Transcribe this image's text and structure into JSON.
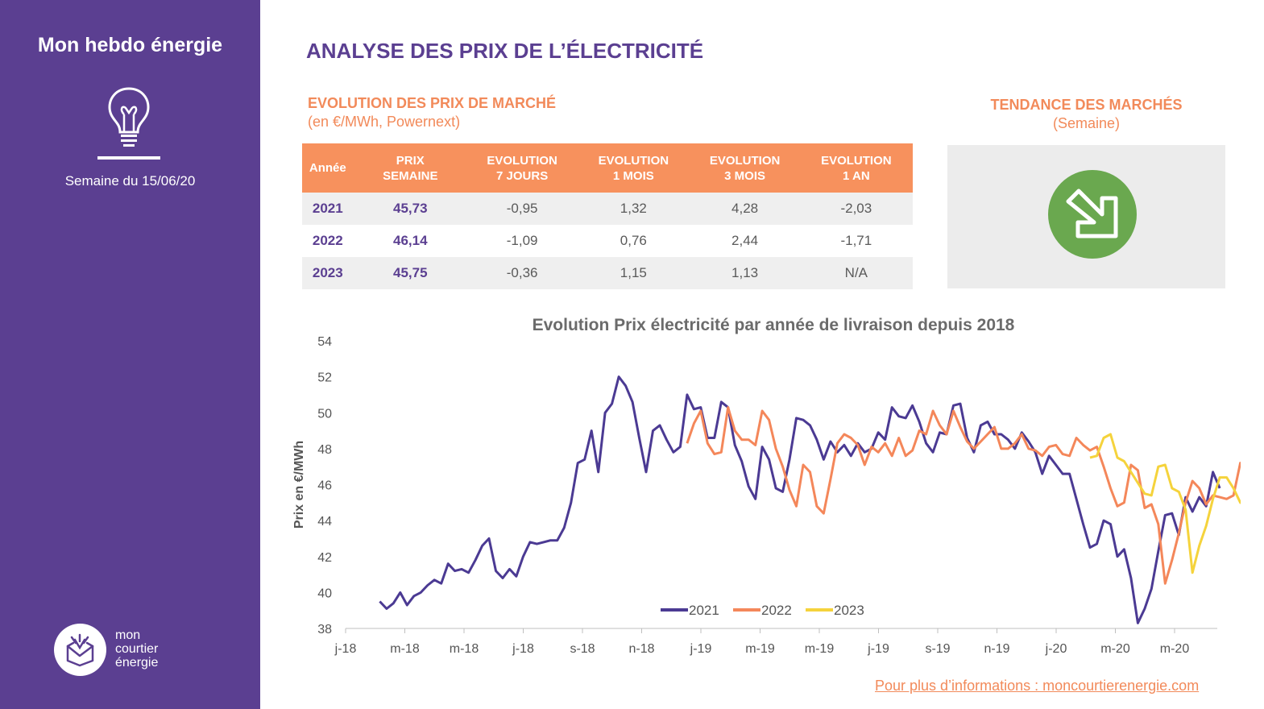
{
  "sidebar": {
    "title": "Mon hebdo énergie",
    "week": "Semaine du 15/06/20",
    "logo_lines": [
      "mon",
      "courtier",
      "énergie"
    ],
    "bg_color": "#5b3f91",
    "icon": "lightbulb-icon"
  },
  "header": {
    "title": "ANALYSE DES PRIX DE L’ÉLECTRICITÉ"
  },
  "market": {
    "title": "EVOLUTION DES PRIX DE MARCHÉ",
    "unit": "(en €/MWh, Powernext)",
    "columns": [
      "Année",
      "PRIX SEMAINE",
      "EVOLUTION 7 JOURS",
      "EVOLUTION 1 MOIS",
      "EVOLUTION 3 MOIS",
      "EVOLUTION 1 AN"
    ],
    "rows": [
      [
        "2021",
        "45,73",
        "-0,95",
        "1,32",
        "4,28",
        "-2,03"
      ],
      [
        "2022",
        "46,14",
        "-1,09",
        "0,76",
        "2,44",
        "-1,71"
      ],
      [
        "2023",
        "45,75",
        "-0,36",
        "1,15",
        "1,13",
        "N/A"
      ]
    ]
  },
  "trend": {
    "title": "TENDANCE DES MARCHÉS",
    "subtitle": "(Semaine)",
    "icon": "arrow-down-right-icon",
    "color": "#6aa84f"
  },
  "footer": {
    "link": "Pour plus d’informations : moncourtierenergie.com"
  },
  "chart_data": {
    "type": "line",
    "title": "Evolution Prix électricité par année de livraison depuis 2018",
    "xlabel": "",
    "ylabel": "Prix en €/MWh",
    "ylim": [
      38,
      54
    ],
    "yticks": [
      38,
      40,
      42,
      44,
      46,
      48,
      50,
      52,
      54
    ],
    "xticks": [
      "j-18",
      "m-18",
      "m-18",
      "j-18",
      "s-18",
      "n-18",
      "j-19",
      "m-19",
      "m-19",
      "j-19",
      "s-19",
      "n-19",
      "j-20",
      "m-20",
      "m-20"
    ],
    "x_start_index": 0,
    "x_per_tick": 8.67,
    "legend_position": "bottom",
    "grid": false,
    "series": [
      {
        "name": "2021",
        "color": "#4b3a93",
        "start": 5,
        "values": [
          39.5,
          39.1,
          39.4,
          40.0,
          39.3,
          39.8,
          40.0,
          40.4,
          40.7,
          40.5,
          41.6,
          41.2,
          41.3,
          41.1,
          41.8,
          42.6,
          43.0,
          41.2,
          40.8,
          41.3,
          40.9,
          42.0,
          42.8,
          42.7,
          42.8,
          42.9,
          42.9,
          43.6,
          45.0,
          47.2,
          47.4,
          49.0,
          46.7,
          50.0,
          50.5,
          52.0,
          51.5,
          50.6,
          48.6,
          46.7,
          49.0,
          49.3,
          48.5,
          47.8,
          48.1,
          51.0,
          50.2,
          50.3,
          48.6,
          48.6,
          50.6,
          50.3,
          48.2,
          47.3,
          45.9,
          45.2,
          48.1,
          47.4,
          45.8,
          45.6,
          47.4,
          49.7,
          49.6,
          49.3,
          48.5,
          47.4,
          48.4,
          47.8,
          48.2,
          47.6,
          48.3,
          47.8,
          48.0,
          48.9,
          48.5,
          50.3,
          49.8,
          49.7,
          50.4,
          49.5,
          48.3,
          47.8,
          48.9,
          48.8,
          50.4,
          50.5,
          48.6,
          47.8,
          49.3,
          49.5,
          48.8,
          48.8,
          48.5,
          48.0,
          48.9,
          48.4,
          47.8,
          46.6,
          47.6,
          47.1,
          46.6,
          46.6,
          45.2,
          43.8,
          42.5,
          42.7,
          44.0,
          43.8,
          42.0,
          42.4,
          40.8,
          38.3,
          39.1,
          40.2,
          42.3,
          44.3,
          44.4,
          43.2,
          45.3,
          44.5,
          45.3,
          44.8,
          46.7,
          45.8
        ]
      },
      {
        "name": "2022",
        "color": "#f4875a",
        "start": 50,
        "values": [
          48.3,
          49.4,
          50.1,
          48.3,
          47.7,
          47.8,
          50.3,
          49.0,
          48.5,
          48.5,
          48.2,
          50.1,
          49.6,
          48.0,
          47.0,
          45.7,
          44.8,
          47.1,
          46.7,
          44.8,
          44.4,
          46.3,
          48.3,
          48.8,
          48.6,
          48.2,
          47.1,
          48.1,
          47.8,
          48.3,
          47.6,
          48.6,
          47.6,
          47.9,
          49.0,
          48.8,
          50.1,
          49.3,
          48.8,
          50.1,
          49.2,
          48.4,
          48.0,
          48.4,
          48.8,
          49.2,
          48.0,
          48.0,
          48.3,
          48.8,
          48.0,
          47.9,
          47.6,
          48.1,
          48.2,
          47.7,
          47.6,
          48.6,
          48.2,
          47.9,
          48.1,
          47.0,
          45.8,
          44.8,
          45.0,
          47.1,
          46.8,
          44.7,
          44.9,
          43.8,
          40.5,
          41.8,
          43.3,
          45.0,
          46.2,
          45.8,
          44.9,
          45.4,
          45.3,
          45.2,
          45.4,
          47.2,
          46.2
        ]
      },
      {
        "name": "2023",
        "color": "#f5d33c",
        "start": 109,
        "values": [
          47.5,
          47.6,
          48.6,
          48.8,
          47.5,
          47.3,
          46.7,
          46.1,
          45.5,
          45.4,
          47.0,
          47.1,
          45.8,
          45.6,
          44.6,
          41.1,
          42.6,
          43.7,
          45.2,
          46.4,
          46.4,
          45.8,
          45.0,
          44.8,
          44.6,
          44.4,
          44.3,
          44.2,
          46.3,
          45.7
        ]
      }
    ]
  }
}
